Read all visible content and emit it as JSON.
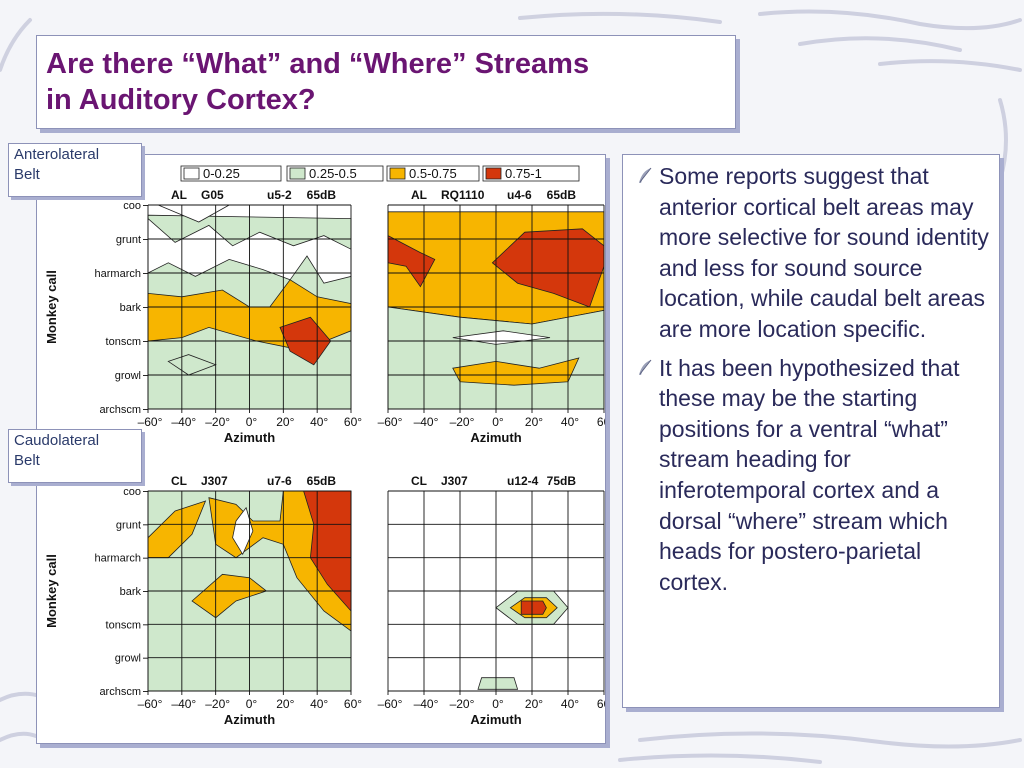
{
  "slide": {
    "title_line1": "Are there “What” and “Where” Streams",
    "title_line2": "in Auditory Cortex?",
    "region_labels": {
      "anterolateral": [
        "Anterolateral",
        "Belt"
      ],
      "caudolateral": [
        "Caudolateral",
        "Belt"
      ]
    },
    "bullets": [
      "Some reports suggest that anterior cortical belt areas may more selective for sound identity and less for sound source location, while caudal belt areas are more location specific.",
      "It has been hypothesized that these may be the starting positions for a ventral “what” stream heading for inferotemporal cortex and a dorsal “where” stream which heads for postero-parietal cortex."
    ],
    "bullet_icon": "feather-quill-icon"
  },
  "figure": {
    "legend": [
      {
        "label": "0-0.25",
        "color": "#ffffff"
      },
      {
        "label": "0.25-0.5",
        "color": "#cfe8cc"
      },
      {
        "label": "0.5-0.75",
        "color": "#f7b500"
      },
      {
        "label": "0.75-1",
        "color": "#d4370c"
      }
    ],
    "ylabel": "Monkey call",
    "xlabel": "Azimuth",
    "calls": [
      "coo",
      "grunt",
      "harmarch",
      "bark",
      "tonscm",
      "growl",
      "archscm"
    ],
    "azimuth_ticks": [
      "–60°",
      "–40°",
      "–20°",
      "0°",
      "20°",
      "40°",
      "60°"
    ],
    "panels": [
      {
        "area": "AL",
        "id": "G05",
        "unit": "u5-2",
        "level": "65dB"
      },
      {
        "area": "AL",
        "id": "RQ1110",
        "unit": "u4-6",
        "level": "65dB"
      },
      {
        "area": "CL",
        "id": "J307",
        "unit": "u7-6",
        "level": "65dB"
      },
      {
        "area": "CL",
        "id": "J307",
        "unit": "u12-4",
        "level": "75dB"
      }
    ]
  }
}
